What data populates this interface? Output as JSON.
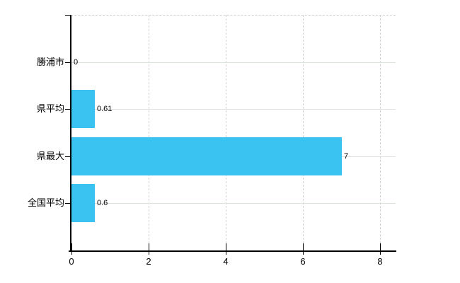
{
  "chart_data": {
    "type": "bar",
    "orientation": "horizontal",
    "title": "",
    "xlabel": "",
    "ylabel": "",
    "categories": [
      "勝浦市",
      "県平均",
      "県最大",
      "全国平均"
    ],
    "values": [
      0,
      0.61,
      7,
      0.6
    ],
    "value_labels": [
      "0",
      "0.61",
      "7",
      "0.6"
    ],
    "x_ticks": [
      0,
      2,
      4,
      6,
      8
    ],
    "x_tick_labels": [
      "0",
      "2",
      "4",
      "6",
      "8"
    ],
    "xlim": [
      0,
      8.4
    ],
    "grid": true,
    "legend": false,
    "gridline_style": {
      "horizontal": "solid",
      "vertical": "dashed",
      "plot_top_border": "dashed"
    },
    "colors": {
      "bar": "#3ac2f1",
      "horizontal_gridline": "#dce3da",
      "vertical_gridline": "#d6d0d4",
      "axis": "#000000",
      "text": "#000000",
      "background": "#ffffff"
    }
  }
}
